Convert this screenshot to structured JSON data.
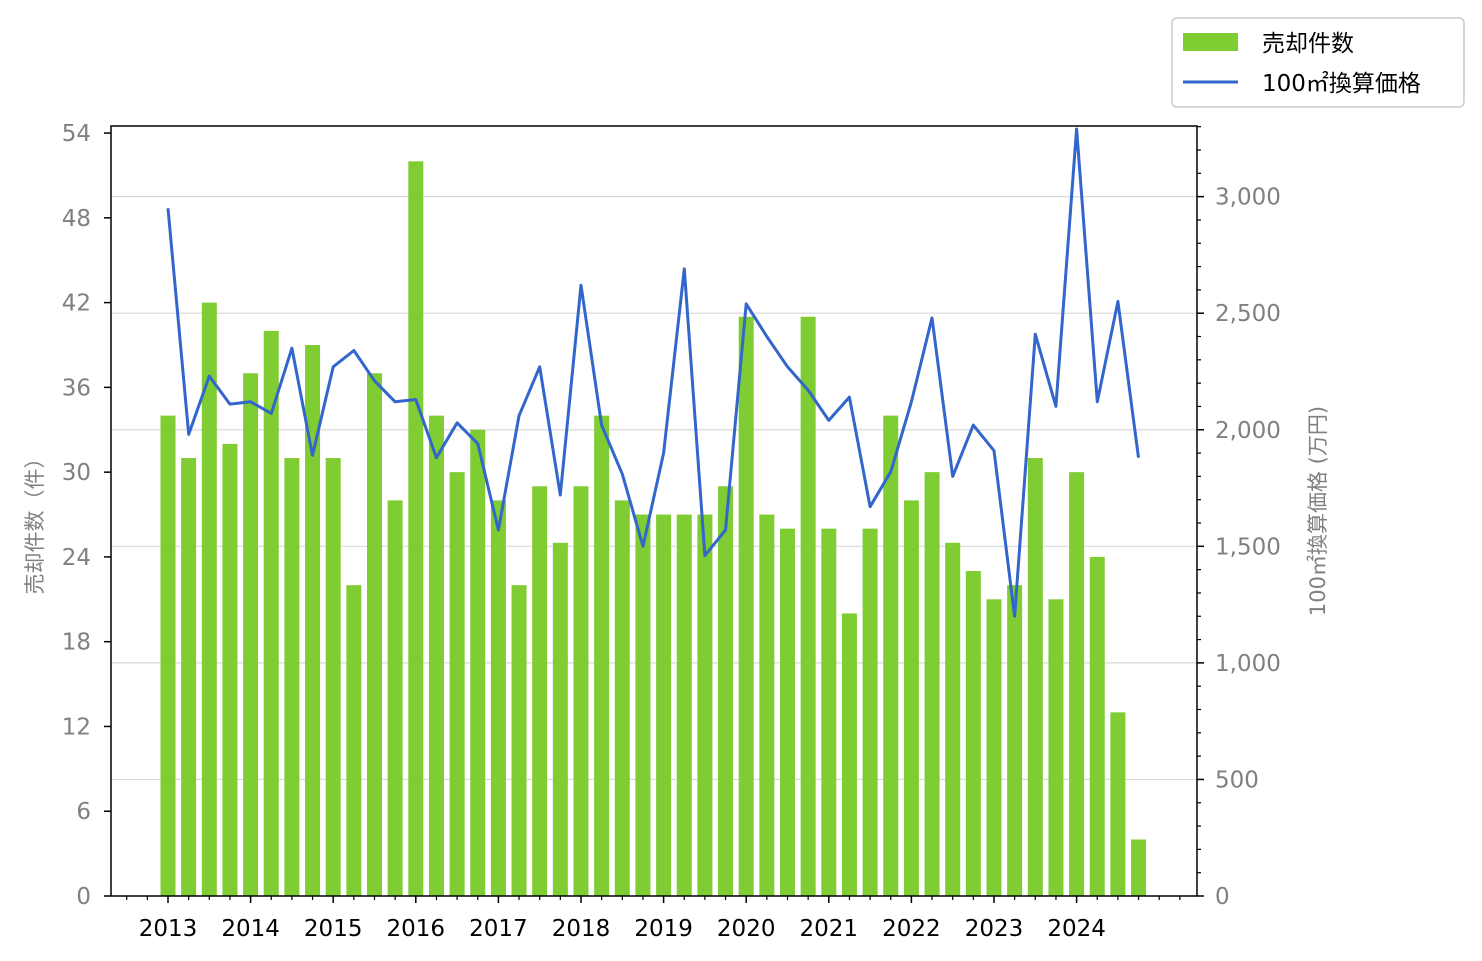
{
  "chart_data": {
    "type": "bar+line",
    "categories": [
      "2013Q1",
      "2013Q2",
      "2013Q3",
      "2013Q4",
      "2014Q1",
      "2014Q2",
      "2014Q3",
      "2014Q4",
      "2015Q1",
      "2015Q2",
      "2015Q3",
      "2015Q4",
      "2016Q1",
      "2016Q2",
      "2016Q3",
      "2016Q4",
      "2017Q1",
      "2017Q2",
      "2017Q3",
      "2017Q4",
      "2018Q1",
      "2018Q2",
      "2018Q3",
      "2018Q4",
      "2019Q1",
      "2019Q2",
      "2019Q3",
      "2019Q4",
      "2020Q1",
      "2020Q2",
      "2020Q3",
      "2020Q4",
      "2021Q1",
      "2021Q2",
      "2021Q3",
      "2021Q4",
      "2022Q1",
      "2022Q2",
      "2022Q3",
      "2022Q4",
      "2023Q1",
      "2023Q2",
      "2023Q3",
      "2023Q4",
      "2024Q1",
      "2024Q2",
      "2024Q3",
      "2024Q4"
    ],
    "x_tick_labels": [
      "2013",
      "2014",
      "2015",
      "2016",
      "2017",
      "2018",
      "2019",
      "2020",
      "2021",
      "2022",
      "2023",
      "2024"
    ],
    "series": [
      {
        "name": "売却件数",
        "kind": "bar",
        "axis": "left",
        "color": "#7fcc33",
        "values": [
          34,
          31,
          42,
          32,
          37,
          40,
          31,
          39,
          31,
          22,
          37,
          28,
          52,
          34,
          30,
          33,
          28,
          22,
          29,
          25,
          29,
          34,
          28,
          27,
          27,
          27,
          27,
          29,
          41,
          27,
          26,
          41,
          26,
          20,
          26,
          34,
          28,
          30,
          25,
          23,
          21,
          22,
          31,
          21,
          30,
          24,
          13,
          4
        ]
      },
      {
        "name": "100㎡換算価格",
        "kind": "line",
        "axis": "right",
        "color": "#3366cc",
        "values": [
          2950,
          1980,
          2230,
          2110,
          2120,
          2070,
          2350,
          1890,
          2270,
          2340,
          2210,
          2120,
          2130,
          1880,
          2030,
          1940,
          1570,
          2060,
          2270,
          1720,
          2620,
          2020,
          1810,
          1500,
          1900,
          2690,
          1460,
          1570,
          2540,
          2400,
          2270,
          2170,
          2040,
          2140,
          1670,
          1820,
          2120,
          2480,
          1800,
          2020,
          1910,
          1200,
          2410,
          2100,
          3290,
          2120,
          2550,
          1880
        ]
      }
    ],
    "ylabel": "売却件数（件）",
    "y2label": "100㎡換算価格 (万円)",
    "ylim": [
      0,
      54.5
    ],
    "y2lim": [
      0,
      3303
    ],
    "y_ticks": [
      0,
      6,
      12,
      18,
      24,
      30,
      36,
      42,
      48,
      54
    ],
    "y2_ticks": [
      0,
      500,
      1000,
      1500,
      2000,
      2500,
      3000
    ],
    "y2_tick_labels": [
      "0",
      "500",
      "1,000",
      "1,500",
      "2,000",
      "2,500",
      "3,000"
    ],
    "grid": "horizontal lines at right-axis ticks",
    "legend": "top-right, outside plot"
  }
}
